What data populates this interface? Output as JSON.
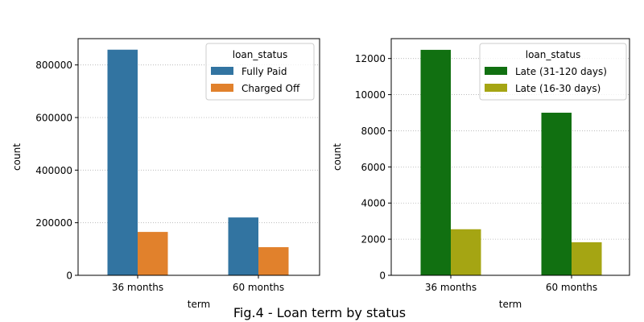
{
  "figure": {
    "caption": "Fig.4 - Loan term by status"
  },
  "chart_data": [
    {
      "type": "bar",
      "xlabel": "term",
      "ylabel": "count",
      "categories": [
        "36 months",
        "60 months"
      ],
      "ylim": [
        0,
        900000
      ],
      "yticks": [
        0,
        200000,
        400000,
        600000,
        800000
      ],
      "grid": "y-dotted",
      "legend_title": "loan_status",
      "legend_position": "top-right",
      "series": [
        {
          "name": "Fully Paid",
          "color": "#3274a1",
          "values": [
            858000,
            220000
          ]
        },
        {
          "name": "Charged Off",
          "color": "#e1812c",
          "values": [
            165000,
            107000
          ]
        }
      ]
    },
    {
      "type": "bar",
      "xlabel": "term",
      "ylabel": "count",
      "categories": [
        "36 months",
        "60 months"
      ],
      "ylim": [
        0,
        13100
      ],
      "yticks": [
        0,
        2000,
        4000,
        6000,
        8000,
        10000,
        12000
      ],
      "grid": "y-dotted",
      "legend_title": "loan_status",
      "legend_position": "top-right",
      "series": [
        {
          "name": "Late (31-120 days)",
          "color": "#117011",
          "values": [
            12480,
            9000
          ]
        },
        {
          "name": "Late (16-30 days)",
          "color": "#a5a513",
          "values": [
            2550,
            1830
          ]
        }
      ]
    }
  ]
}
